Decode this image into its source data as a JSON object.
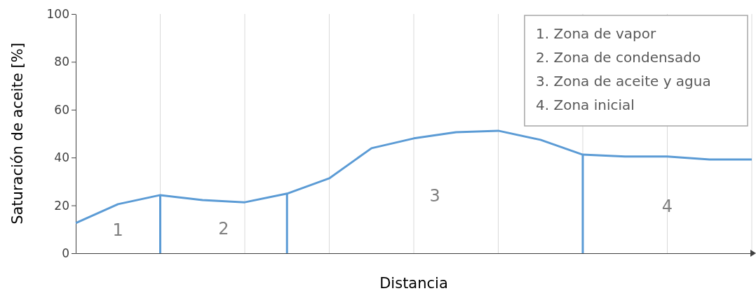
{
  "chart_data": {
    "type": "line",
    "xlabel": "Distancia",
    "ylabel": "Saturación de aceite [%]",
    "categories": [
      null,
      null,
      null,
      null,
      null,
      null,
      null,
      null,
      null,
      null,
      null,
      null,
      null,
      null,
      null,
      null,
      null
    ],
    "series": [
      {
        "color": "#5b9bd5",
        "values": [
          12.6,
          20.5,
          24.3,
          22.2,
          21.3,
          24.9,
          31.3,
          43.9,
          48,
          50.6,
          51.2,
          47.4,
          41.2,
          40.4,
          40.4,
          39.2,
          39.2
        ]
      }
    ],
    "ylim": [
      0,
      100
    ],
    "yticks": [
      0,
      20,
      40,
      60,
      80,
      100
    ],
    "grid": "x",
    "marker": "none",
    "line_style": "solid",
    "annotations": [
      "1",
      "2",
      "3",
      "4",
      "1. Zona de vapor",
      "2. Zona de condensado",
      "3. Zona de aceite y agua",
      "4. Zona inicial"
    ]
  }
}
